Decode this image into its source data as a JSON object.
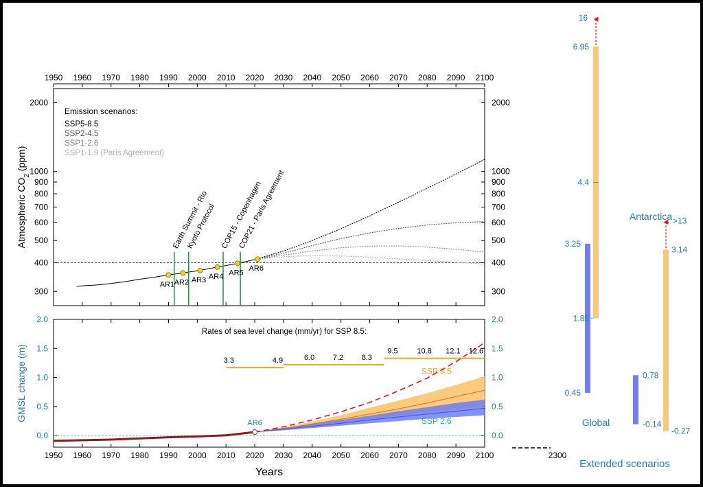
{
  "chart_data": [
    {
      "type": "line",
      "panel": "co2",
      "ylabel": "Atmospheric CO2 (ppm)",
      "x_ticks": [
        1950,
        1960,
        1970,
        1980,
        1990,
        2000,
        2010,
        2020,
        2030,
        2040,
        2050,
        2060,
        2070,
        2080,
        2090,
        2100
      ],
      "xlim": [
        1950,
        2100
      ],
      "y_scale": "log",
      "ylim": [
        260,
        2300
      ],
      "y_ticks": [
        300,
        400,
        500,
        600,
        700,
        800,
        900,
        1000,
        2000
      ],
      "reference_line": 400,
      "legend_title": "Emission scenarios:",
      "legend_items": [
        "SSP5-8.5",
        "SSP2-4.5",
        "SSP1-2.6",
        "SSP1-1.9 (Paris Agreement)"
      ],
      "colors": {
        "historical": "#000000",
        "ssp585": "#000000",
        "ssp245": "#555555",
        "ssp126": "#888888",
        "ssp119": "#b0b0b0",
        "event": "#1a9a3a",
        "marker": "#f5d400"
      },
      "historical": {
        "x": [
          1958,
          1965,
          1970,
          1975,
          1980,
          1985,
          1990,
          1995,
          2000,
          2005,
          2010,
          2015,
          2020
        ],
        "y": [
          316,
          320,
          325,
          331,
          339,
          346,
          354,
          361,
          369,
          379,
          389,
          400,
          413
        ]
      },
      "scenarios": [
        {
          "key": "ssp585",
          "x": [
            2020,
            2030,
            2040,
            2050,
            2060,
            2070,
            2080,
            2090,
            2100
          ],
          "y": [
            413,
            450,
            500,
            563,
            640,
            735,
            845,
            975,
            1130
          ]
        },
        {
          "key": "ssp245",
          "x": [
            2020,
            2030,
            2040,
            2050,
            2060,
            2070,
            2080,
            2090,
            2100
          ],
          "y": [
            413,
            440,
            475,
            510,
            540,
            565,
            585,
            598,
            605
          ]
        },
        {
          "key": "ssp126",
          "x": [
            2020,
            2030,
            2040,
            2050,
            2060,
            2070,
            2080,
            2090,
            2100
          ],
          "y": [
            413,
            432,
            450,
            465,
            473,
            474,
            468,
            458,
            446
          ]
        },
        {
          "key": "ssp119",
          "x": [
            2020,
            2030,
            2040,
            2050,
            2060,
            2070,
            2080,
            2090,
            2100
          ],
          "y": [
            413,
            425,
            430,
            428,
            423,
            416,
            409,
            402,
            395
          ]
        }
      ],
      "events": [
        {
          "label": "Earth Summit - Rio",
          "year": 1992
        },
        {
          "label": "Kyoto Protocol",
          "year": 1997
        },
        {
          "label": "COP15 - Copenhagen",
          "year": 2009
        },
        {
          "label": "COP21 - Paris Agreement",
          "year": 2015
        }
      ],
      "reports": [
        {
          "label": "AR1",
          "year": 1990,
          "value": 354
        },
        {
          "label": "AR2",
          "year": 1995,
          "value": 361
        },
        {
          "label": "AR3",
          "year": 2001,
          "value": 370
        },
        {
          "label": "AR4",
          "year": 2007,
          "value": 383
        },
        {
          "label": "AR5",
          "year": 2014,
          "value": 398
        },
        {
          "label": "AR6",
          "year": 2021,
          "value": 415
        }
      ]
    },
    {
      "type": "area",
      "panel": "gmsl",
      "ylabel": "GMSL change (m)",
      "xlabel": "Years",
      "xlim": [
        1950,
        2100
      ],
      "x_ticks": [
        1950,
        1960,
        1970,
        1980,
        1990,
        2000,
        2010,
        2020,
        2030,
        2040,
        2050,
        2060,
        2070,
        2080,
        2090,
        2100
      ],
      "extra_x_tick": "2300",
      "ylim": [
        -0.2,
        2.0
      ],
      "y_ticks": [
        "0.0",
        "0.5",
        "1.0",
        "1.5",
        "2.0"
      ],
      "colors": {
        "ssp85": "#f7a028",
        "ssp85_band": "#f9c874",
        "ssp26": "#2f55f0",
        "ssp26_band": "#6f7ef6",
        "observed": "#8b1a1a",
        "highend": "#e8141e",
        "axis": "#1e78c8"
      },
      "observed": {
        "x": [
          1950,
          1960,
          1970,
          1980,
          1990,
          2000,
          2010,
          2020
        ],
        "y": [
          -0.09,
          -0.08,
          -0.07,
          -0.05,
          -0.03,
          -0.015,
          0.005,
          0.06
        ]
      },
      "ssp85": {
        "x": [
          2020,
          2030,
          2040,
          2050,
          2060,
          2070,
          2080,
          2090,
          2100
        ],
        "median": [
          0.06,
          0.12,
          0.2,
          0.28,
          0.37,
          0.46,
          0.56,
          0.67,
          0.78
        ],
        "low": [
          0.06,
          0.1,
          0.16,
          0.22,
          0.28,
          0.34,
          0.4,
          0.46,
          0.52
        ],
        "high": [
          0.06,
          0.14,
          0.24,
          0.35,
          0.48,
          0.6,
          0.73,
          0.87,
          1.02
        ]
      },
      "ssp26": {
        "x": [
          2020,
          2030,
          2040,
          2050,
          2060,
          2070,
          2080,
          2090,
          2100
        ],
        "median": [
          0.06,
          0.11,
          0.16,
          0.21,
          0.27,
          0.32,
          0.37,
          0.42,
          0.47
        ],
        "low": [
          0.06,
          0.09,
          0.13,
          0.17,
          0.21,
          0.25,
          0.29,
          0.32,
          0.35
        ],
        "high": [
          0.06,
          0.13,
          0.2,
          0.27,
          0.34,
          0.42,
          0.49,
          0.56,
          0.62
        ]
      },
      "highend": {
        "x": [
          2020,
          2030,
          2040,
          2050,
          2060,
          2070,
          2080,
          2090,
          2100
        ],
        "y": [
          0.06,
          0.15,
          0.27,
          0.41,
          0.57,
          0.77,
          0.99,
          1.27,
          1.6
        ]
      },
      "rates_title": "Rates of sea level change (mm/yr) for SSP 8.5:",
      "rates": [
        {
          "value": "3.3",
          "x0": 2010,
          "x1": 2030,
          "level": 1.17
        },
        {
          "value": "4.9",
          "x0": 2010,
          "x1": 2030,
          "level": 1.17
        },
        {
          "value": "6.0",
          "x0": 2030,
          "x1": 2065,
          "level": 1.22
        },
        {
          "value": "7.2",
          "x0": 2030,
          "x1": 2065,
          "level": 1.22
        },
        {
          "value": "8.3",
          "x0": 2030,
          "x1": 2065,
          "level": 1.22
        },
        {
          "value": "9.5",
          "x0": 2065,
          "x1": 2100,
          "level": 1.33
        },
        {
          "value": "10.8",
          "x0": 2065,
          "x1": 2100,
          "level": 1.33
        },
        {
          "value": "12.1",
          "x0": 2065,
          "x1": 2100,
          "level": 1.33
        },
        {
          "value": "12.6",
          "x0": 2065,
          "x1": 2100,
          "level": 1.33
        }
      ],
      "labels": {
        "ssp85": "SSP 8.5",
        "ssp26": "SSP 2.6",
        "ar6": "AR6"
      }
    },
    {
      "type": "bar",
      "panel": "extended",
      "title": "Extended scenarios",
      "groups": [
        {
          "name": "Global",
          "bars": [
            {
              "color": "#6f7ef6",
              "low": 0.45,
              "high": 3.25,
              "low_label": "0.45",
              "high_label": "3.25"
            },
            {
              "color": "#f9c874",
              "low": 1.85,
              "high": 6.95,
              "mid": 4.4,
              "low_label": "1.85",
              "high_label": "6.95",
              "mid_label": "4.4",
              "arrow_label": "16"
            }
          ]
        },
        {
          "name": "Antarctica",
          "bars": [
            {
              "color": "#6f7ef6",
              "low": -0.14,
              "high": 0.78,
              "low_label": "-0.14",
              "high_label": "0.78"
            },
            {
              "color": "#f9c874",
              "low": -0.27,
              "high": 3.14,
              "low_label": "-0.27",
              "high_label": "3.14",
              "arrow_label": ">13"
            }
          ]
        }
      ]
    }
  ]
}
